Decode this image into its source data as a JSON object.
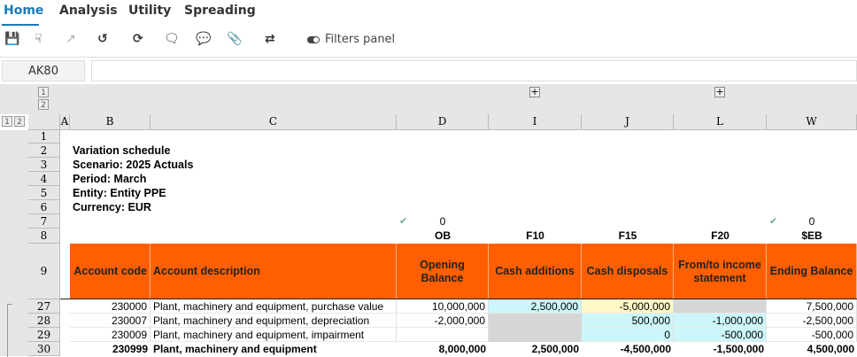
{
  "tabs": [
    "Home",
    "Analysis",
    "Utility",
    "Spreading"
  ],
  "toolbar": {
    "filters_label": "Filters panel",
    "icons": [
      "save-icon",
      "user-edit-icon",
      "export-icon",
      "undo-icon",
      "refresh-icon",
      "comment-refresh-icon",
      "comment-icon",
      "attachment-icon",
      "sync-icon",
      "toggle-icon"
    ]
  },
  "name_box": "AK80",
  "formula": "",
  "outline_levels": [
    "1",
    "2"
  ],
  "columns": [
    "A",
    "B",
    "C",
    "D",
    "I",
    "J",
    "L",
    "W"
  ],
  "rows": {
    "r1": "1",
    "r2": "2",
    "r3": "3",
    "r4": "4",
    "r5": "5",
    "r6": "6",
    "r7": "7",
    "r8": "8",
    "r9": "9",
    "r27": "27",
    "r28": "28",
    "r29": "29",
    "r30": "30"
  },
  "info": {
    "title": "Variation schedule",
    "scenario": "Scenario: 2025 Actuals",
    "period": "Period: March",
    "entity": "Entity: Entity PPE",
    "currency": "Currency: EUR"
  },
  "checks": {
    "d": "0",
    "w": "0"
  },
  "codes": {
    "d": "OB",
    "i": "F10",
    "j": "F15",
    "l": "F20",
    "w": "$EB"
  },
  "headers": {
    "code": "Account code",
    "desc": "Account description",
    "d": "Opening Balance",
    "i": "Cash additions",
    "j": "Cash disposals",
    "l": "From/to income statement",
    "w": "Ending Balance"
  },
  "data": [
    {
      "code": "230000",
      "desc": "Plant, machinery and equipment, purchase value",
      "d": "10,000,000",
      "i": "2,500,000",
      "j": "-5,000,000",
      "l": "",
      "w": "7,500,000"
    },
    {
      "code": "230007",
      "desc": "Plant, machinery and equipment, depreciation",
      "d": "-2,000,000",
      "i": "",
      "j": "500,000",
      "l": "-1,000,000",
      "w": "-2,500,000"
    },
    {
      "code": "230009",
      "desc": "Plant, machinery and equipment, impairment",
      "d": "",
      "i": "",
      "j": "0",
      "l": "-500,000",
      "w": "-500,000"
    },
    {
      "code": "230999",
      "desc": "Plant, machinery and equipment",
      "d": "8,000,000",
      "i": "2,500,000",
      "j": "-4,500,000",
      "l": "-1,500,000",
      "w": "4,500,000"
    }
  ],
  "colors": {
    "header": "#ff5f00",
    "input_cyan": "#ccf7fa",
    "input_yellow": "#fff8c8",
    "locked_gray": "#d6d6d6",
    "accent": "#1a7ab8"
  }
}
